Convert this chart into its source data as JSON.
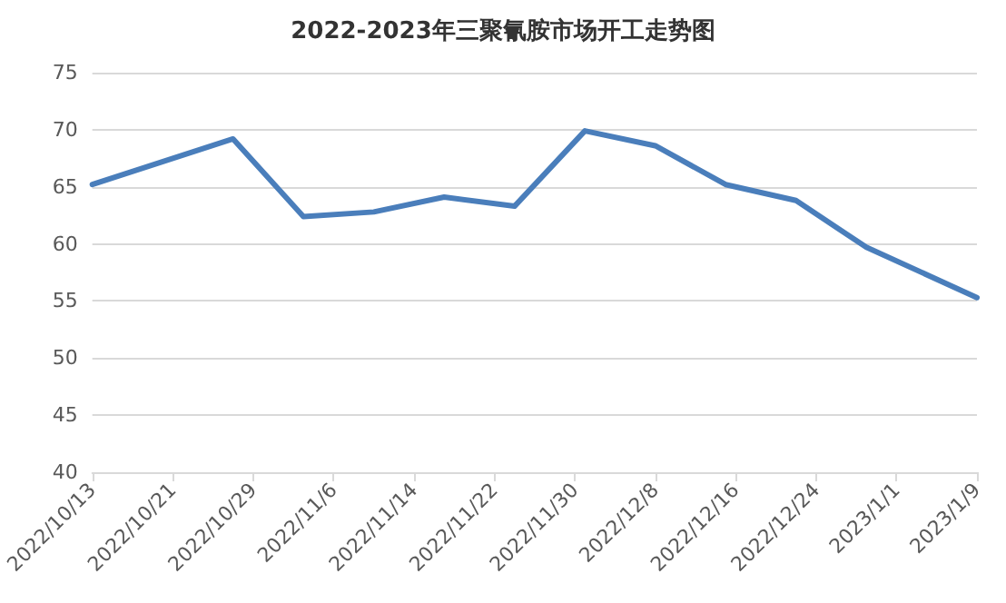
{
  "chart_data": {
    "type": "line",
    "title": "2022-2023年三聚氰胺市场开工走势图",
    "x": [
      "2022-10-13",
      "2022-10-27",
      "2022-11-03",
      "2022-11-10",
      "2022-11-17",
      "2022-11-24",
      "2022-12-01",
      "2022-12-08",
      "2022-12-15",
      "2022-12-22",
      "2022-12-29",
      "2023-01-09"
    ],
    "series": [
      {
        "color": "#4a7ebb",
        "values": [
          65.2,
          69.2,
          62.4,
          62.8,
          64.1,
          63.3,
          69.9,
          68.6,
          65.2,
          63.8,
          59.7,
          55.3
        ]
      }
    ],
    "xlim": [
      "2022-10-13",
      "2023-01-09"
    ],
    "xticks": [
      {
        "value": "2022-10-13",
        "label": "2022/10/13"
      },
      {
        "value": "2022-10-21",
        "label": "2022/10/21"
      },
      {
        "value": "2022-10-29",
        "label": "2022/10/29"
      },
      {
        "value": "2022-11-06",
        "label": "2022/11/6"
      },
      {
        "value": "2022-11-14",
        "label": "2022/11/14"
      },
      {
        "value": "2022-11-22",
        "label": "2022/11/22"
      },
      {
        "value": "2022-11-30",
        "label": "2022/11/30"
      },
      {
        "value": "2022-12-08",
        "label": "2022/12/8"
      },
      {
        "value": "2022-12-16",
        "label": "2022/12/16"
      },
      {
        "value": "2022-12-24",
        "label": "2022/12/24"
      },
      {
        "value": "2023-01-01",
        "label": "2023/1/1"
      },
      {
        "value": "2023-01-09",
        "label": "2023/1/9"
      }
    ],
    "ylim": [
      40,
      75
    ],
    "yticks": [
      40,
      45,
      50,
      55,
      60,
      65,
      70,
      75
    ],
    "grid": "y",
    "marker": "none",
    "line_style": "solid"
  }
}
